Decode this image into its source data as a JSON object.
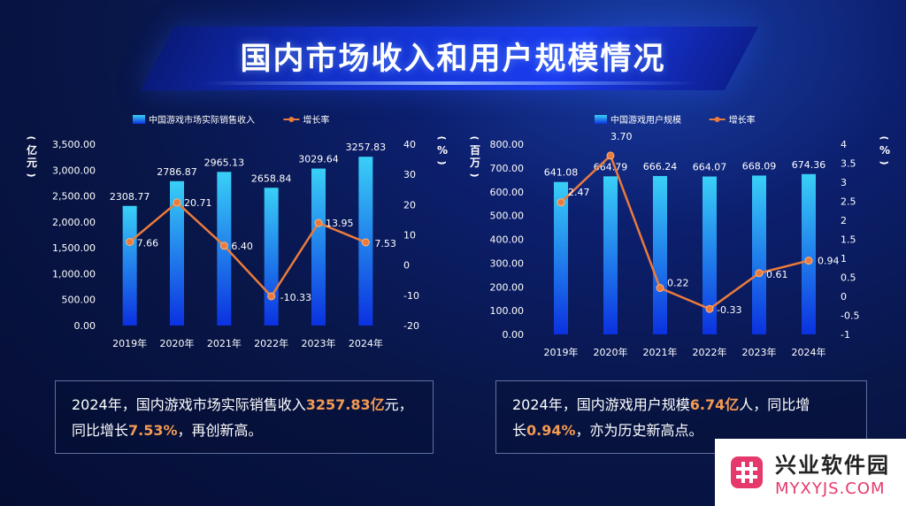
{
  "page": {
    "title": "国内市场收入和用户规模情况"
  },
  "chart_data": [
    {
      "type": "bar",
      "categories": [
        "2019年",
        "2020年",
        "2021年",
        "2022年",
        "2023年",
        "2024年"
      ],
      "series": [
        {
          "name": "中国游戏市场实际销售收入",
          "kind": "bar",
          "axis": "left",
          "values": [
            2308.77,
            2786.87,
            2965.13,
            2658.84,
            3029.64,
            3257.83
          ],
          "labels": [
            "2308.77",
            "2786.87",
            "2965.13",
            "2658.84",
            "3029.64",
            "3257.83"
          ]
        },
        {
          "name": "增长率",
          "kind": "line",
          "axis": "right",
          "values": [
            7.66,
            20.71,
            6.4,
            -10.33,
            13.95,
            7.53
          ],
          "labels": [
            "7.66",
            "20.71",
            "6.40",
            "-10.33",
            "13.95",
            "7.53"
          ]
        }
      ],
      "ylabel_left": "亿元",
      "ylabel_right": "%",
      "ylim_left": [
        0,
        3500
      ],
      "yticks_left": [
        0,
        500,
        1000,
        1500,
        2000,
        2500,
        3000,
        3500
      ],
      "ytick_labels_left": [
        "0.00",
        "500.00",
        "1,000.00",
        "1,500.00",
        "2,000.00",
        "2,500.00",
        "3,000.00",
        "3,500.00"
      ],
      "ylim_right": [
        -20,
        40
      ],
      "yticks_right": [
        -20,
        -10,
        0,
        10,
        20,
        30,
        40
      ],
      "ytick_labels_right": [
        "-20",
        "-10",
        "0",
        "10",
        "20",
        "30",
        "40"
      ],
      "grid": false,
      "legend": "top"
    },
    {
      "type": "bar",
      "categories": [
        "2019年",
        "2020年",
        "2021年",
        "2022年",
        "2023年",
        "2024年"
      ],
      "series": [
        {
          "name": "中国游戏用户规模",
          "kind": "bar",
          "axis": "left",
          "values": [
            641.08,
            664.79,
            666.24,
            664.07,
            668.09,
            674.36
          ],
          "labels": [
            "641.08",
            "664.79",
            "666.24",
            "664.07",
            "668.09",
            "674.36"
          ]
        },
        {
          "name": "增长率",
          "kind": "line",
          "axis": "right",
          "values": [
            2.47,
            3.7,
            0.22,
            -0.33,
            0.61,
            0.94
          ],
          "labels": [
            "2.47",
            "3.70",
            "0.22",
            "-0.33",
            "0.61",
            "0.94"
          ]
        }
      ],
      "ylabel_left": "百万",
      "ylabel_right": "%",
      "ylim_left": [
        0,
        800
      ],
      "yticks_left": [
        0,
        100,
        200,
        300,
        400,
        500,
        600,
        700,
        800
      ],
      "ytick_labels_left": [
        "0.00",
        "100.00",
        "200.00",
        "300.00",
        "400.00",
        "500.00",
        "600.00",
        "700.00",
        "800.00"
      ],
      "ylim_right": [
        -1,
        4
      ],
      "yticks_right": [
        -1,
        -0.5,
        0,
        0.5,
        1,
        1.5,
        2,
        2.5,
        3,
        3.5,
        4
      ],
      "ytick_labels_right": [
        "-1",
        "-0.5",
        "0",
        "0.5",
        "1",
        "1.5",
        "2",
        "2.5",
        "3",
        "3.5",
        "4"
      ],
      "grid": false,
      "legend": "top"
    }
  ],
  "summary_left": {
    "text1": "2024年，国内游戏市场实际销售收入",
    "highlight1": "3257.83亿",
    "text2": "元，",
    "text3": "同比增长",
    "highlight2": "7.53%",
    "text4": "，再创新高。"
  },
  "summary_right": {
    "text1": "2024年，国内游戏用户规模",
    "highlight1": "6.74亿",
    "text2": "人，同比增",
    "text3": "长",
    "highlight2": "0.94%",
    "text4": "，亦为历史新高点。"
  },
  "watermark": {
    "name": "兴业软件园",
    "url": "MYXYJS.COM"
  },
  "colors": {
    "bar_top": "#39d0f7",
    "bar_bottom": "#0b31e0",
    "line": "#ea7b3c",
    "highlight": "#f39a52"
  }
}
